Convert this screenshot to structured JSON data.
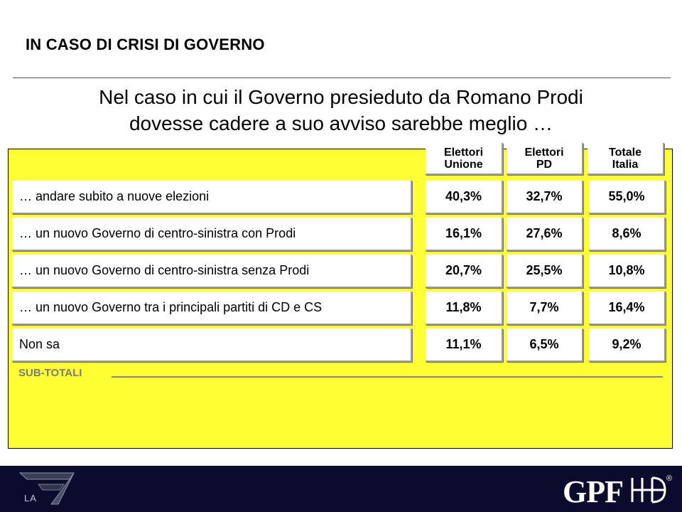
{
  "slide": {
    "title": "IN CASO DI CRISI DI GOVERNO",
    "question_line1": "Nel caso in cui il Governo presieduto da Romano Prodi",
    "question_line2": "dovesse cadere a suo avviso sarebbe meglio …"
  },
  "table": {
    "columns": [
      {
        "line1": "Elettori",
        "line2": "Unione"
      },
      {
        "line1": "Elettori",
        "line2": "PD"
      },
      {
        "line1": "Totale",
        "line2": "Italia"
      }
    ],
    "rows": [
      {
        "label": "… andare subito a nuove elezioni",
        "values": [
          "40,3%",
          "32,7%",
          "55,0%"
        ]
      },
      {
        "label": "… un nuovo Governo di centro-sinistra con Prodi",
        "values": [
          "16,1%",
          "27,6%",
          "8,6%"
        ]
      },
      {
        "label": "… un nuovo Governo di centro-sinistra senza Prodi",
        "values": [
          "20,7%",
          "25,5%",
          "10,8%"
        ]
      },
      {
        "label": "… un nuovo Governo tra i principali partiti di CD e CS",
        "values": [
          "11,8%",
          "7,7%",
          "16,4%"
        ]
      },
      {
        "label": "Non sa",
        "values": [
          "11,1%",
          "6,5%",
          "9,2%"
        ]
      }
    ],
    "subtotal_label": "SUB-TOTALI"
  },
  "footer": {
    "left_logo": "LA7",
    "right_logo": "GPF",
    "right_logo_mark": "®"
  },
  "colors": {
    "panel": "#ffff33",
    "footer": "#0b0b2e"
  }
}
